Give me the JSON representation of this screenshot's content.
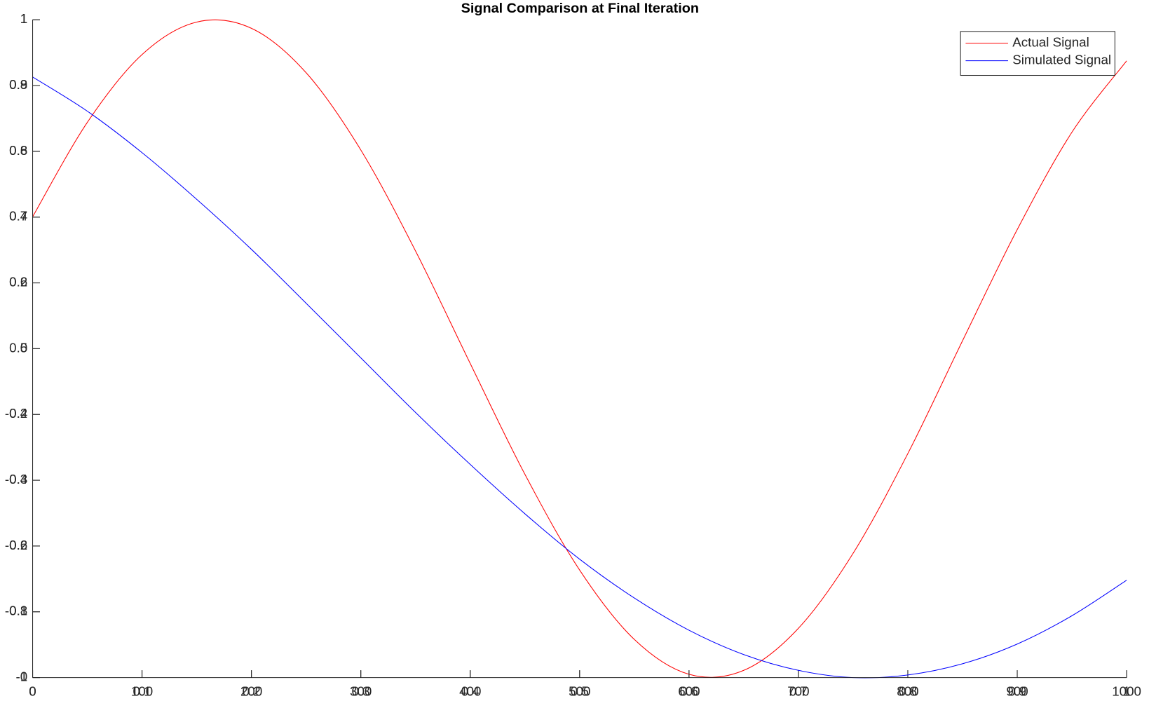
{
  "chart_data": [
    {
      "type": "line",
      "title": "Signal Comparison at Final Iteration",
      "legend": "northeast",
      "x": [
        0,
        50,
        100,
        150,
        200,
        250,
        300,
        350,
        400,
        450,
        500,
        550,
        600,
        650,
        700,
        750,
        800,
        850,
        900,
        950,
        1000
      ],
      "series": [
        {
          "name": "Actual Signal",
          "color": "#ff0000",
          "values": [
            0.401,
            0.688,
            0.894,
            0.993,
            0.974,
            0.839,
            0.604,
            0.297,
            -0.045,
            -0.382,
            -0.673,
            -0.884,
            -0.99,
            -0.978,
            -0.85,
            -0.622,
            -0.319,
            0.024,
            0.362,
            0.658,
            0.875
          ]
        }
      ],
      "xlim": [
        0,
        1000
      ],
      "ylim": [
        -1,
        1
      ],
      "xticks": [
        0,
        100,
        200,
        300,
        400,
        500,
        600,
        700,
        800,
        900,
        1000
      ],
      "yticks": [
        -1,
        -0.8,
        -0.6,
        -0.4,
        -0.2,
        0,
        0.2,
        0.4,
        0.6,
        0.8,
        1
      ]
    },
    {
      "type": "line",
      "x": [
        0,
        0.05,
        0.1,
        0.15,
        0.2,
        0.25,
        0.3,
        0.35,
        0.4,
        0.45,
        0.5,
        0.55,
        0.6,
        0.65,
        0.7,
        0.75,
        0.8,
        0.85,
        0.9,
        0.95,
        1
      ],
      "series": [
        {
          "name": "Simulated Signal",
          "color": "#0000ff",
          "values": [
            0.913,
            0.861,
            0.798,
            0.727,
            0.651,
            0.569,
            0.486,
            0.403,
            0.324,
            0.249,
            0.18,
            0.121,
            0.072,
            0.035,
            0.011,
            0.0,
            0.004,
            0.021,
            0.051,
            0.094,
            0.148
          ]
        }
      ],
      "xlim": [
        0,
        1
      ],
      "ylim": [
        0,
        1
      ],
      "xticks": [
        0,
        0.1,
        0.2,
        0.3,
        0.4,
        0.5,
        0.6,
        0.7,
        0.8,
        0.9,
        1
      ],
      "yticks": [
        0,
        0.1,
        0.2,
        0.3,
        0.4,
        0.5,
        0.6,
        0.7,
        0.8,
        0.9,
        1
      ]
    }
  ]
}
